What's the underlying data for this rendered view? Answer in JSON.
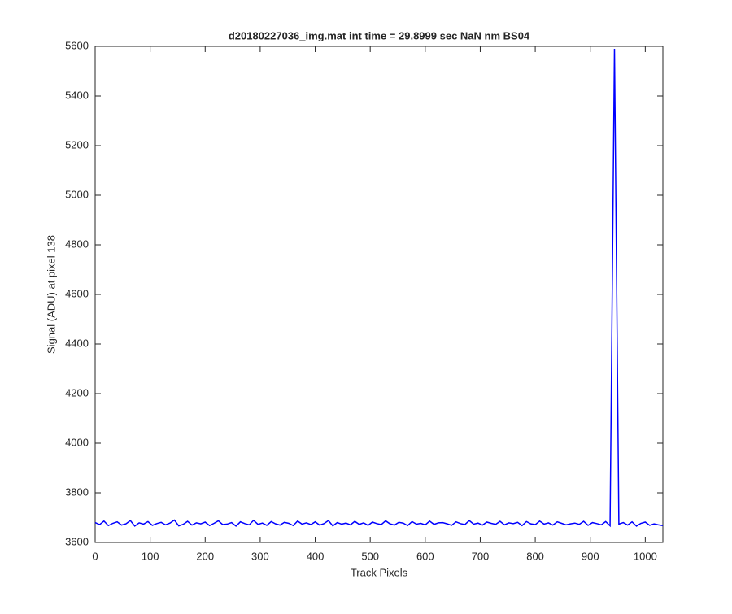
{
  "chart_data": {
    "type": "line",
    "title": "d20180227036_img.mat int time = 29.8999 sec  NaN nm BS04",
    "x_label": "Track Pixels",
    "y_label": "Signal (ADU) at pixel 138",
    "x": [
      0,
      8,
      16,
      24,
      32,
      40,
      48,
      56,
      64,
      72,
      80,
      88,
      96,
      104,
      112,
      120,
      128,
      136,
      144,
      152,
      160,
      168,
      176,
      184,
      192,
      200,
      208,
      216,
      224,
      232,
      240,
      248,
      256,
      264,
      272,
      280,
      288,
      296,
      304,
      312,
      320,
      328,
      336,
      344,
      352,
      360,
      368,
      376,
      384,
      392,
      400,
      408,
      416,
      424,
      432,
      440,
      448,
      456,
      464,
      472,
      480,
      488,
      496,
      504,
      512,
      520,
      528,
      536,
      544,
      552,
      560,
      568,
      576,
      584,
      592,
      600,
      608,
      616,
      624,
      632,
      640,
      648,
      656,
      664,
      672,
      680,
      688,
      696,
      704,
      712,
      720,
      728,
      736,
      744,
      752,
      760,
      768,
      776,
      784,
      792,
      800,
      808,
      816,
      824,
      832,
      840,
      848,
      856,
      864,
      872,
      880,
      888,
      896,
      904,
      912,
      920,
      928,
      936,
      944,
      952,
      960,
      968,
      976,
      984,
      992,
      1000,
      1008,
      1016,
      1024,
      1032
    ],
    "series": [
      {
        "color": "#0000ff",
        "values": [
          3680,
          3672,
          3686,
          3668,
          3677,
          3683,
          3670,
          3675,
          3688,
          3666,
          3679,
          3674,
          3684,
          3669,
          3676,
          3681,
          3671,
          3678,
          3690,
          3667,
          3673,
          3685,
          3670,
          3679,
          3675,
          3682,
          3668,
          3677,
          3687,
          3672,
          3674,
          3680,
          3666,
          3683,
          3676,
          3671,
          3689,
          3673,
          3678,
          3669,
          3684,
          3675,
          3670,
          3681,
          3677,
          3668,
          3686,
          3674,
          3679,
          3672,
          3683,
          3670,
          3676,
          3688,
          3667,
          3680,
          3674,
          3678,
          3671,
          3685,
          3673,
          3679,
          3669,
          3682,
          3676,
          3672,
          3687,
          3675,
          3670,
          3681,
          3678,
          3668,
          3684,
          3674,
          3677,
          3671,
          3686,
          3673,
          3679,
          3680,
          3675,
          3669,
          3683,
          3676,
          3672,
          3688,
          3674,
          3678,
          3670,
          3682,
          3677,
          3673,
          3685,
          3671,
          3679,
          3676,
          3681,
          3668,
          3684,
          3675,
          3672,
          3686,
          3674,
          3679,
          3670,
          3683,
          3677,
          3671,
          3675,
          3678,
          3673,
          3685,
          3669,
          3680,
          3676,
          3671,
          3684,
          3667,
          5590,
          3674,
          3680,
          3670,
          3683,
          3666,
          3677,
          3682,
          3669,
          3675,
          3671,
          3668
        ]
      }
    ],
    "xlim": [
      0,
      1032
    ],
    "ylim": [
      3600,
      5600
    ],
    "xticks": [
      0,
      100,
      200,
      300,
      400,
      500,
      600,
      700,
      800,
      900,
      1000
    ],
    "yticks": [
      3600,
      3800,
      4000,
      4200,
      4400,
      4600,
      4800,
      5000,
      5200,
      5400,
      5600
    ]
  }
}
